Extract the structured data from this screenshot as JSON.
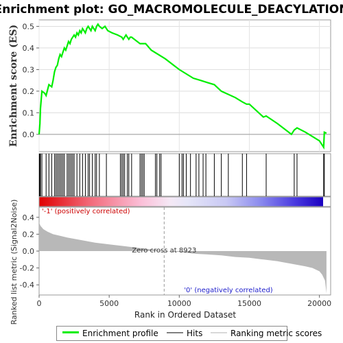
{
  "chart_data": {
    "type": "line",
    "title": "Enrichment plot: GO_MACROMOLECULE_DEACYLATION",
    "xlabel": "Rank in Ordered Dataset",
    "es_ylabel": "Enrichment score (ES)",
    "metric_ylabel": "Ranked list metric (Signal2Noise)",
    "xlim": [
      0,
      20800
    ],
    "es_ylim": [
      -0.08,
      0.53
    ],
    "metric_ylim": [
      -0.52,
      0.52
    ],
    "x_ticks": [
      0,
      5000,
      10000,
      15000,
      20000
    ],
    "x_tick_labels": [
      "0",
      "5000",
      "10000",
      "15000",
      "20000"
    ],
    "es_ticks": [
      0.0,
      0.1,
      0.2,
      0.3,
      0.4,
      0.5
    ],
    "es_tick_labels": [
      "0.0",
      "0.1",
      "0.2",
      "0.3",
      "0.4",
      "0.5"
    ],
    "metric_ticks": [
      0.4,
      0.2,
      0.0,
      -0.2,
      -0.4
    ],
    "metric_tick_labels": [
      "0.4",
      "0.2",
      "0.0",
      "-0.2",
      "-0.4"
    ],
    "series": [
      {
        "name": "Enrichment profile",
        "color": "#00ee00",
        "x": [
          0,
          60,
          100,
          200,
          400,
          500,
          700,
          900,
          1000,
          1100,
          1200,
          1300,
          1400,
          1500,
          1600,
          1700,
          1800,
          1900,
          2000,
          2100,
          2200,
          2300,
          2400,
          2500,
          2600,
          2700,
          2800,
          2900,
          3000,
          3100,
          3200,
          3300,
          3400,
          3500,
          3600,
          3700,
          3800,
          3900,
          4000,
          4100,
          4200,
          4300,
          4500,
          4700,
          4900,
          5200,
          5600,
          5900,
          6000,
          6100,
          6200,
          6300,
          6400,
          6500,
          6600,
          7000,
          7200,
          7400,
          7600,
          8000,
          9000,
          10000,
          11000,
          11500,
          12000,
          12500,
          13000,
          14000,
          14500,
          14800,
          15000,
          16000,
          16200,
          17000,
          18000,
          18200,
          18400,
          19000,
          20000,
          20300,
          20350,
          20500
        ],
        "y": [
          0.0,
          0.05,
          0.12,
          0.2,
          0.19,
          0.18,
          0.23,
          0.22,
          0.25,
          0.29,
          0.31,
          0.32,
          0.35,
          0.37,
          0.36,
          0.38,
          0.4,
          0.39,
          0.41,
          0.43,
          0.42,
          0.44,
          0.45,
          0.46,
          0.45,
          0.47,
          0.46,
          0.48,
          0.47,
          0.49,
          0.48,
          0.47,
          0.49,
          0.5,
          0.49,
          0.48,
          0.5,
          0.49,
          0.48,
          0.5,
          0.51,
          0.5,
          0.49,
          0.5,
          0.48,
          0.47,
          0.46,
          0.45,
          0.44,
          0.45,
          0.46,
          0.45,
          0.44,
          0.45,
          0.45,
          0.43,
          0.42,
          0.42,
          0.42,
          0.39,
          0.35,
          0.3,
          0.26,
          0.25,
          0.24,
          0.23,
          0.2,
          0.17,
          0.15,
          0.14,
          0.14,
          0.08,
          0.085,
          0.05,
          0.0,
          0.02,
          0.03,
          0.01,
          -0.03,
          -0.06,
          0.01,
          0.005
        ]
      }
    ],
    "hits": [
      20,
      60,
      100,
      200,
      500,
      700,
      900,
      1100,
      1200,
      1300,
      1400,
      1500,
      1600,
      1700,
      1800,
      2000,
      2100,
      2200,
      2300,
      2400,
      2500,
      2700,
      2900,
      3100,
      3300,
      3500,
      3600,
      3800,
      4000,
      4100,
      4300,
      4800,
      5800,
      5900,
      6000,
      6100,
      6300,
      6400,
      6600,
      7200,
      7300,
      7400,
      7500,
      8300,
      8400,
      8600,
      8700,
      10000,
      10200,
      10300,
      10500,
      10800,
      11200,
      11400,
      11700,
      11900,
      12500,
      13000,
      13500,
      14500,
      14800,
      16200,
      18200,
      18400,
      20300,
      20350
    ],
    "metric_curve": {
      "x": [
        0,
        100,
        300,
        600,
        1000,
        1500,
        2000,
        3000,
        4000,
        5000,
        6000,
        7000,
        8000,
        8923,
        10000,
        11000,
        12000,
        13000,
        14000,
        15000,
        16000,
        17000,
        18000,
        19000,
        19500,
        20000,
        20200,
        20400,
        20500
      ],
      "y": [
        0.34,
        0.3,
        0.26,
        0.23,
        0.2,
        0.18,
        0.16,
        0.13,
        0.1,
        0.08,
        0.06,
        0.04,
        0.02,
        0.0,
        -0.01,
        -0.03,
        -0.04,
        -0.05,
        -0.07,
        -0.08,
        -0.1,
        -0.12,
        -0.15,
        -0.18,
        -0.2,
        -0.24,
        -0.28,
        -0.35,
        -0.5
      ]
    },
    "zero_cross": 8923,
    "labels": {
      "zero_cross": "Zero cross at 8923",
      "positive": "'-1' (positively correlated)",
      "negative": "'0' (negatively correlated)"
    },
    "legend": {
      "placement": "bottom",
      "entries": [
        {
          "label": "Enrichment profile",
          "color": "#00ee00"
        },
        {
          "label": "Hits",
          "color": "#808080"
        },
        {
          "label": "Ranking metric scores",
          "color": "#d8d8d8"
        }
      ]
    },
    "colors": {
      "es_line": "#00ee00",
      "hit_line": "#000000",
      "metric_fill": "#b8b8b8",
      "positive_label": "#cc0000",
      "negative_label": "#2222cc",
      "zero_cross_line": "#999999"
    }
  }
}
